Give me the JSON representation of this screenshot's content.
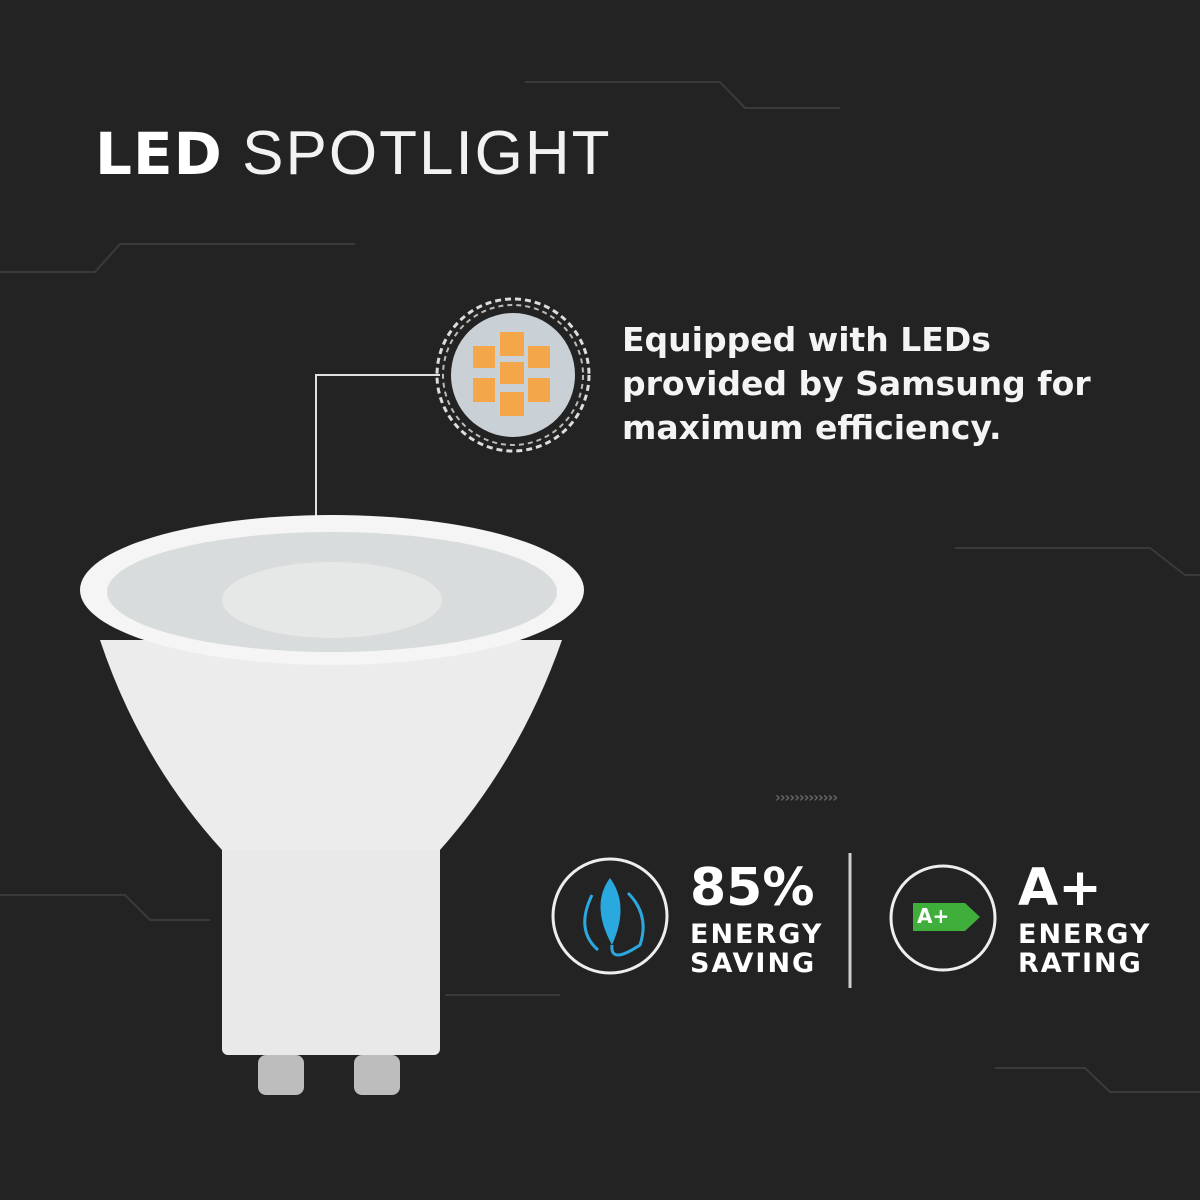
{
  "title": {
    "bold": "LED",
    "light": "SPOTLIGHT"
  },
  "description": "Equipped with LEDs provided by Samsung for maximum efficiency.",
  "decor": {
    "chevrons": "›››››››››››››"
  },
  "features": [
    {
      "value": "85%",
      "line1": "ENERGY",
      "line2": "SAVING",
      "icon": "leaf-plug-icon",
      "color": "#2aa9e0"
    },
    {
      "value": "A+",
      "line1": "ENERGY",
      "line2": "RATING",
      "icon": "energy-label-icon",
      "badge": "A+",
      "color": "#3fae3a"
    }
  ]
}
